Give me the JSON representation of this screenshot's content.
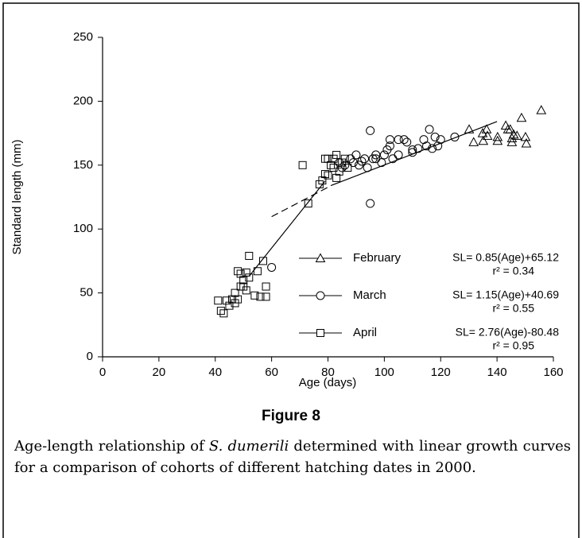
{
  "chart_data": {
    "type": "scatter",
    "xlabel": "Age (days)",
    "ylabel": "Standard length (mm)",
    "xlim": [
      0,
      160
    ],
    "xticks": [
      0,
      20,
      40,
      60,
      80,
      100,
      120,
      140,
      160
    ],
    "ylim": [
      0,
      250
    ],
    "yticks": [
      0,
      50,
      100,
      150,
      200,
      250
    ],
    "color": "#000000",
    "series": [
      {
        "name": "February",
        "marker": "triangle",
        "x": [
          155.7,
          148.7,
          150.4,
          143.9,
          143.1,
          145.3,
          145.9,
          144.7,
          140.2,
          136.3,
          135.1,
          131.7,
          136.6,
          150.1,
          147.1,
          134.9,
          130.1,
          140.2,
          145.3
        ],
        "values": [
          193,
          187,
          167,
          178,
          181,
          168,
          174,
          178,
          172,
          178,
          169,
          168,
          173,
          172,
          173,
          175,
          178,
          169,
          171
        ],
        "fit": {
          "slope": 0.85,
          "intercept": 65.12,
          "x": [
            81,
            140
          ],
          "dashed": false,
          "equation": "SL= 0.85(Age)+65.12",
          "r_squared": "r² = 0.34"
        }
      },
      {
        "name": "March",
        "marker": "circle",
        "x": [
          95,
          60,
          95,
          97,
          100,
          102,
          105,
          108,
          110,
          112,
          115,
          116,
          118,
          119,
          120,
          125,
          102,
          103,
          99,
          92,
          90,
          88,
          86,
          94,
          96,
          105,
          110,
          114,
          117,
          107,
          93,
          97,
          101,
          89,
          91,
          84,
          85
        ],
        "values": [
          120,
          70,
          177,
          155,
          158,
          165,
          170,
          168,
          162,
          163,
          165,
          178,
          172,
          165,
          170,
          172,
          170,
          155,
          152,
          153,
          158,
          155,
          150,
          148,
          155,
          158,
          160,
          170,
          163,
          170,
          155,
          158,
          162,
          152,
          150,
          152,
          148
        ]
      },
      {
        "name": "April",
        "marker": "square",
        "x": [
          41,
          42,
          43,
          44,
          45,
          46,
          47,
          47,
          48,
          48,
          49,
          49,
          50,
          50,
          51,
          51,
          52,
          52,
          54,
          55,
          56,
          57,
          58,
          58,
          71,
          73,
          77,
          78,
          79,
          80,
          80,
          81,
          82,
          82,
          83,
          84,
          85,
          86,
          87,
          83,
          79
        ],
        "values": [
          44,
          36,
          34,
          44,
          40,
          45,
          50,
          42,
          67,
          45,
          55,
          65,
          55,
          60,
          52,
          66,
          79,
          62,
          48,
          67,
          47,
          75,
          55,
          47,
          150,
          120,
          135,
          138,
          143,
          142,
          155,
          150,
          155,
          148,
          158,
          145,
          152,
          155,
          148,
          140,
          155
        ]
      }
    ],
    "fits_extra": [
      {
        "series": "March",
        "slope": 1.15,
        "intercept": 40.69,
        "x": [
          60,
          81
        ],
        "dashed": true,
        "equation": "SL= 1.15(Age)+40.69",
        "r_squared": "r² = 0.55"
      },
      {
        "series": "April",
        "slope": 2.76,
        "intercept": -80.48,
        "x": [
          52,
          79
        ],
        "dashed": false,
        "equation": "SL= 2.76(Age)-80.48",
        "r_squared": "r² = 0.95"
      }
    ]
  },
  "figure": {
    "label": "Figure 8",
    "caption": [
      "Age-length relationship of ",
      "S. dumerili",
      " determined with linear growth curves for a comparison of cohorts of different hatching dates in 2000."
    ]
  }
}
